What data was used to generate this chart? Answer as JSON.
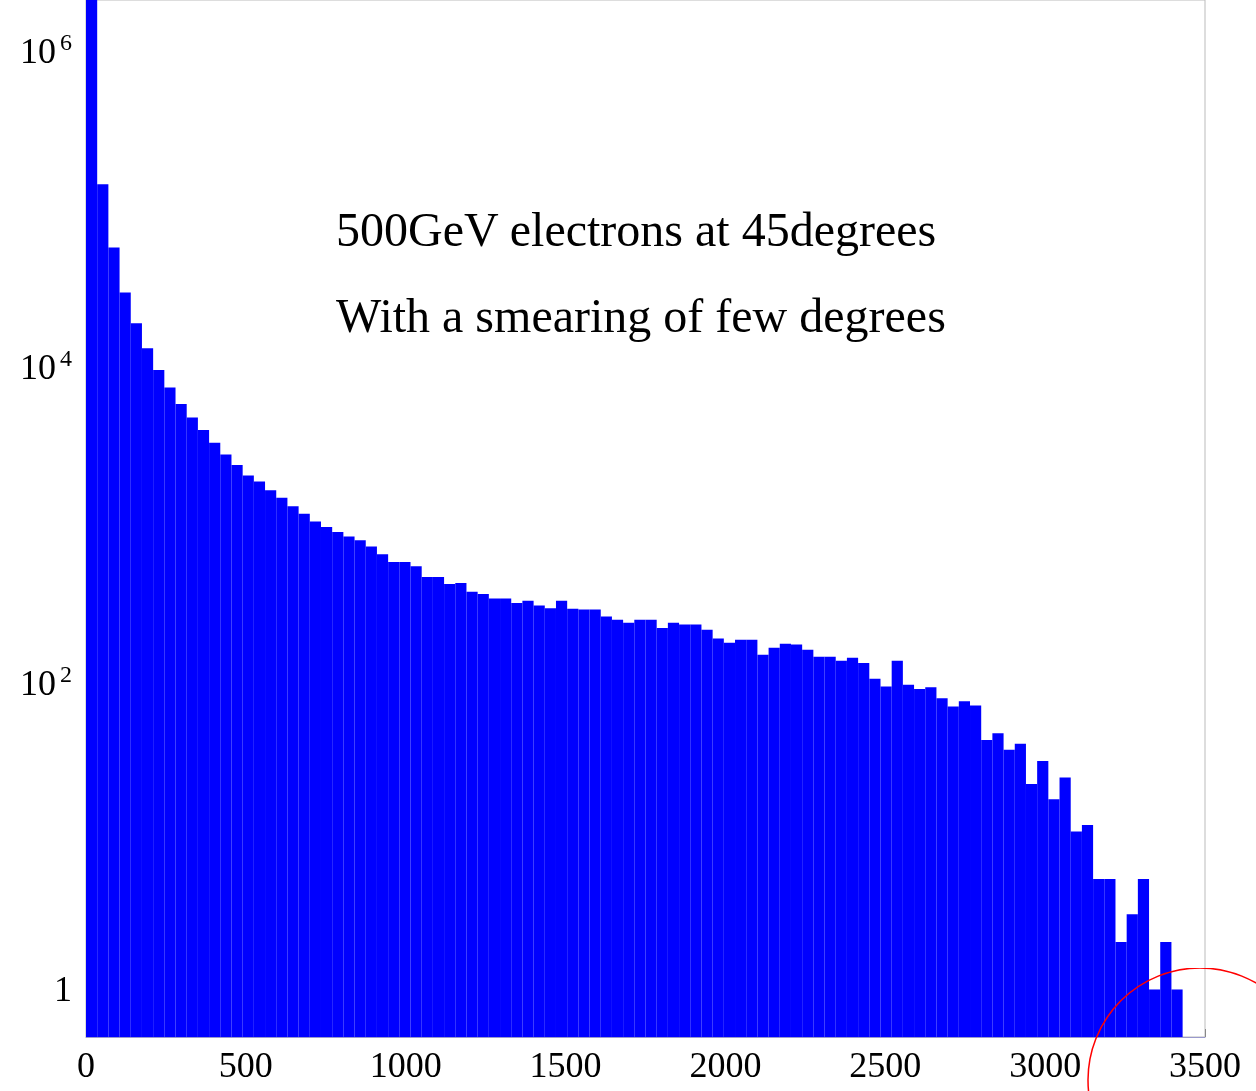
{
  "chart_data": {
    "type": "histogram",
    "bins": [
      0,
      35,
      70,
      105,
      140,
      175,
      210,
      245,
      280,
      315,
      350,
      385,
      420,
      455,
      490,
      525,
      560,
      595,
      630,
      665,
      700,
      735,
      770,
      805,
      840,
      875,
      910,
      945,
      980,
      1015,
      1050,
      1085,
      1120,
      1155,
      1190,
      1225,
      1260,
      1295,
      1330,
      1365,
      1400,
      1435,
      1470,
      1505,
      1540,
      1575,
      1610,
      1645,
      1680,
      1715,
      1750,
      1785,
      1820,
      1855,
      1890,
      1925,
      1960,
      1995,
      2030,
      2065,
      2100,
      2135,
      2170,
      2205,
      2240,
      2275,
      2310,
      2345,
      2380,
      2415,
      2450,
      2485,
      2520,
      2555,
      2590,
      2625,
      2660,
      2695,
      2730,
      2765,
      2800,
      2835,
      2870,
      2905,
      2940,
      2975,
      3010,
      3045,
      3080,
      3115,
      3150,
      3185,
      3220,
      3255,
      3290,
      3325,
      3360,
      3395,
      3430
    ],
    "values": [
      1850000,
      126000,
      50000,
      26000,
      16600,
      11500,
      8400,
      6500,
      5100,
      4200,
      3500,
      2900,
      2450,
      2100,
      1800,
      1650,
      1450,
      1300,
      1150,
      1030,
      920,
      850,
      790,
      740,
      700,
      640,
      570,
      510,
      510,
      480,
      410,
      410,
      370,
      375,
      330,
      320,
      300,
      300,
      280,
      290,
      270,
      260,
      290,
      258,
      255,
      255,
      230,
      220,
      210,
      220,
      220,
      195,
      210,
      205,
      205,
      190,
      167,
      157,
      164,
      164,
      132,
      146,
      155,
      153,
      142,
      128,
      128,
      121,
      126,
      117,
      93,
      83,
      121,
      85,
      80,
      82,
      70,
      62,
      67,
      63,
      38,
      42,
      33,
      36,
      20,
      28,
      16,
      22,
      10,
      11,
      5,
      5,
      2,
      3,
      5,
      1,
      2,
      1
    ],
    "color": "#0000ff",
    "log": "y",
    "xlim": [
      0,
      3500
    ],
    "xticks": [
      0,
      500,
      1000,
      1500,
      2000,
      2500,
      3000,
      3500
    ],
    "ylim": [
      0.5,
      1850000
    ],
    "yticks": [
      1,
      {
        "value": 100,
        "label": "10$^{2}$"
      },
      {
        "value": 10000,
        "label": "10$^{4}$"
      },
      {
        "value": 1000000,
        "label": "10$^{6}$"
      }
    ],
    "annotations": [
      "500GeV electrons at 45degrees",
      "With a smearing of few degrees"
    ]
  }
}
